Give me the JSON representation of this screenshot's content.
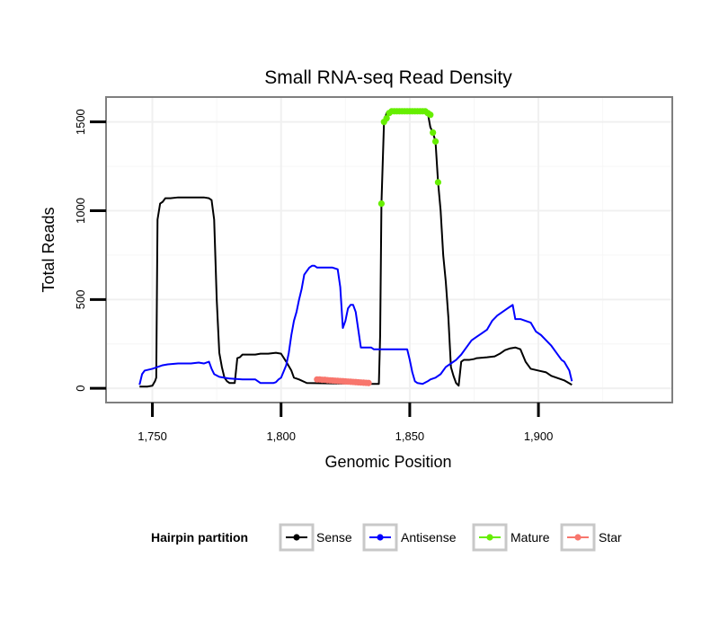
{
  "chart_data": {
    "type": "line",
    "title": "Small RNA-seq Read Density",
    "xlabel": "Genomic Position",
    "ylabel": "Total Reads",
    "xlim": [
      1732,
      1952
    ],
    "ylim": [
      -80,
      1640
    ],
    "x_ticks": [
      1750,
      1800,
      1850,
      1900
    ],
    "x_tick_labels": [
      "1,750",
      "1,800",
      "1,850",
      "1,900"
    ],
    "y_ticks": [
      0,
      500,
      1000,
      1500
    ],
    "y_tick_labels": [
      "0",
      "500",
      "1000",
      "1500"
    ],
    "grid": true,
    "legend": {
      "title": "Hairpin partition",
      "position": "bottom",
      "entries": [
        {
          "name": "Sense",
          "color": "#000000"
        },
        {
          "name": "Antisense",
          "color": "#0000ff"
        },
        {
          "name": "Mature",
          "color": "#66ee00"
        },
        {
          "name": "Star",
          "color": "#f8766d"
        }
      ]
    },
    "series": [
      {
        "name": "Sense",
        "style": "line",
        "color": "#000000",
        "points": [
          [
            1745,
            10
          ],
          [
            1748,
            10
          ],
          [
            1750,
            15
          ],
          [
            1751,
            40
          ],
          [
            1751.5,
            60
          ],
          [
            1752,
            950
          ],
          [
            1753,
            1040
          ],
          [
            1754,
            1050
          ],
          [
            1755,
            1070
          ],
          [
            1757,
            1070
          ],
          [
            1760,
            1075
          ],
          [
            1765,
            1075
          ],
          [
            1770,
            1075
          ],
          [
            1772,
            1070
          ],
          [
            1773,
            1060
          ],
          [
            1774,
            950
          ],
          [
            1775,
            500
          ],
          [
            1776,
            200
          ],
          [
            1777,
            120
          ],
          [
            1778,
            60
          ],
          [
            1779,
            40
          ],
          [
            1780,
            30
          ],
          [
            1781,
            30
          ],
          [
            1782,
            30
          ],
          [
            1783,
            170
          ],
          [
            1784,
            175
          ],
          [
            1785,
            190
          ],
          [
            1790,
            190
          ],
          [
            1792,
            195
          ],
          [
            1795,
            195
          ],
          [
            1798,
            200
          ],
          [
            1800,
            195
          ],
          [
            1802,
            150
          ],
          [
            1804,
            100
          ],
          [
            1805,
            60
          ],
          [
            1807,
            50
          ],
          [
            1810,
            30
          ],
          [
            1835,
            25
          ],
          [
            1837,
            25
          ],
          [
            1838,
            25
          ],
          [
            1838.5,
            300
          ],
          [
            1839,
            1040
          ],
          [
            1840,
            1500
          ],
          [
            1841,
            1550
          ],
          [
            1845,
            1560
          ],
          [
            1850,
            1560
          ],
          [
            1855,
            1560
          ],
          [
            1857,
            1550
          ],
          [
            1858,
            1470
          ],
          [
            1859,
            1440
          ],
          [
            1860,
            1390
          ],
          [
            1861,
            1160
          ],
          [
            1862,
            1000
          ],
          [
            1863,
            750
          ],
          [
            1864,
            600
          ],
          [
            1865,
            400
          ],
          [
            1866,
            120
          ],
          [
            1867,
            70
          ],
          [
            1868,
            30
          ],
          [
            1869,
            15
          ],
          [
            1870,
            150
          ],
          [
            1871,
            160
          ],
          [
            1873,
            160
          ],
          [
            1875,
            165
          ],
          [
            1876,
            170
          ],
          [
            1880,
            175
          ],
          [
            1883,
            180
          ],
          [
            1885,
            195
          ],
          [
            1887,
            215
          ],
          [
            1889,
            225
          ],
          [
            1891,
            230
          ],
          [
            1893,
            220
          ],
          [
            1895,
            150
          ],
          [
            1897,
            110
          ],
          [
            1900,
            100
          ],
          [
            1903,
            90
          ],
          [
            1905,
            70
          ],
          [
            1910,
            45
          ],
          [
            1913,
            20
          ]
        ]
      },
      {
        "name": "Antisense",
        "style": "line",
        "color": "#0000ff",
        "points": [
          [
            1745,
            20
          ],
          [
            1746,
            80
          ],
          [
            1747,
            100
          ],
          [
            1750,
            110
          ],
          [
            1752,
            120
          ],
          [
            1754,
            130
          ],
          [
            1756,
            135
          ],
          [
            1760,
            140
          ],
          [
            1765,
            140
          ],
          [
            1768,
            145
          ],
          [
            1770,
            140
          ],
          [
            1772,
            150
          ],
          [
            1773,
            110
          ],
          [
            1774,
            80
          ],
          [
            1776,
            65
          ],
          [
            1778,
            60
          ],
          [
            1780,
            55
          ],
          [
            1785,
            50
          ],
          [
            1790,
            50
          ],
          [
            1791,
            40
          ],
          [
            1792,
            30
          ],
          [
            1795,
            30
          ],
          [
            1797,
            30
          ],
          [
            1798,
            35
          ],
          [
            1799,
            50
          ],
          [
            1800,
            60
          ],
          [
            1802,
            130
          ],
          [
            1803,
            200
          ],
          [
            1804,
            300
          ],
          [
            1805,
            380
          ],
          [
            1806,
            430
          ],
          [
            1807,
            500
          ],
          [
            1808,
            560
          ],
          [
            1809,
            640
          ],
          [
            1810,
            660
          ],
          [
            1811,
            680
          ],
          [
            1812,
            690
          ],
          [
            1813,
            690
          ],
          [
            1814,
            680
          ],
          [
            1820,
            680
          ],
          [
            1822,
            670
          ],
          [
            1823,
            570
          ],
          [
            1824,
            340
          ],
          [
            1825,
            380
          ],
          [
            1826,
            450
          ],
          [
            1827,
            470
          ],
          [
            1828,
            470
          ],
          [
            1829,
            430
          ],
          [
            1830,
            330
          ],
          [
            1831,
            230
          ],
          [
            1835,
            230
          ],
          [
            1836,
            220
          ],
          [
            1845,
            220
          ],
          [
            1848,
            220
          ],
          [
            1849,
            220
          ],
          [
            1850,
            160
          ],
          [
            1851,
            90
          ],
          [
            1852,
            40
          ],
          [
            1853,
            30
          ],
          [
            1855,
            25
          ],
          [
            1857,
            40
          ],
          [
            1858,
            50
          ],
          [
            1860,
            60
          ],
          [
            1862,
            80
          ],
          [
            1864,
            120
          ],
          [
            1866,
            140
          ],
          [
            1868,
            160
          ],
          [
            1870,
            190
          ],
          [
            1872,
            230
          ],
          [
            1874,
            270
          ],
          [
            1876,
            290
          ],
          [
            1878,
            310
          ],
          [
            1880,
            330
          ],
          [
            1882,
            380
          ],
          [
            1884,
            410
          ],
          [
            1886,
            430
          ],
          [
            1888,
            450
          ],
          [
            1889,
            460
          ],
          [
            1890,
            470
          ],
          [
            1891,
            390
          ],
          [
            1893,
            390
          ],
          [
            1895,
            380
          ],
          [
            1897,
            370
          ],
          [
            1899,
            320
          ],
          [
            1901,
            300
          ],
          [
            1903,
            270
          ],
          [
            1905,
            240
          ],
          [
            1907,
            200
          ],
          [
            1909,
            160
          ],
          [
            1910,
            150
          ],
          [
            1912,
            100
          ],
          [
            1913,
            40
          ]
        ]
      },
      {
        "name": "Mature",
        "style": "points",
        "color": "#66ee00",
        "points": [
          [
            1839,
            1040
          ],
          [
            1840,
            1500
          ],
          [
            1841,
            1520
          ],
          [
            1842,
            1550
          ],
          [
            1843,
            1560
          ],
          [
            1844,
            1560
          ],
          [
            1845,
            1560
          ],
          [
            1846,
            1560
          ],
          [
            1847,
            1560
          ],
          [
            1848,
            1560
          ],
          [
            1849,
            1560
          ],
          [
            1850,
            1560
          ],
          [
            1851,
            1560
          ],
          [
            1852,
            1560
          ],
          [
            1853,
            1560
          ],
          [
            1854,
            1560
          ],
          [
            1855,
            1560
          ],
          [
            1856,
            1560
          ],
          [
            1857,
            1550
          ],
          [
            1858,
            1540
          ],
          [
            1859,
            1440
          ],
          [
            1860,
            1390
          ],
          [
            1861,
            1160
          ]
        ]
      },
      {
        "name": "Star",
        "style": "points",
        "color": "#f8766d",
        "points": [
          [
            1814,
            50
          ],
          [
            1815,
            50
          ],
          [
            1816,
            48
          ],
          [
            1817,
            48
          ],
          [
            1818,
            46
          ],
          [
            1819,
            45
          ],
          [
            1820,
            44
          ],
          [
            1821,
            43
          ],
          [
            1822,
            42
          ],
          [
            1823,
            41
          ],
          [
            1824,
            40
          ],
          [
            1825,
            39
          ],
          [
            1826,
            38
          ],
          [
            1827,
            37
          ],
          [
            1828,
            36
          ],
          [
            1829,
            35
          ],
          [
            1830,
            34
          ],
          [
            1831,
            33
          ],
          [
            1832,
            32
          ],
          [
            1833,
            31
          ],
          [
            1834,
            30
          ]
        ]
      }
    ]
  }
}
